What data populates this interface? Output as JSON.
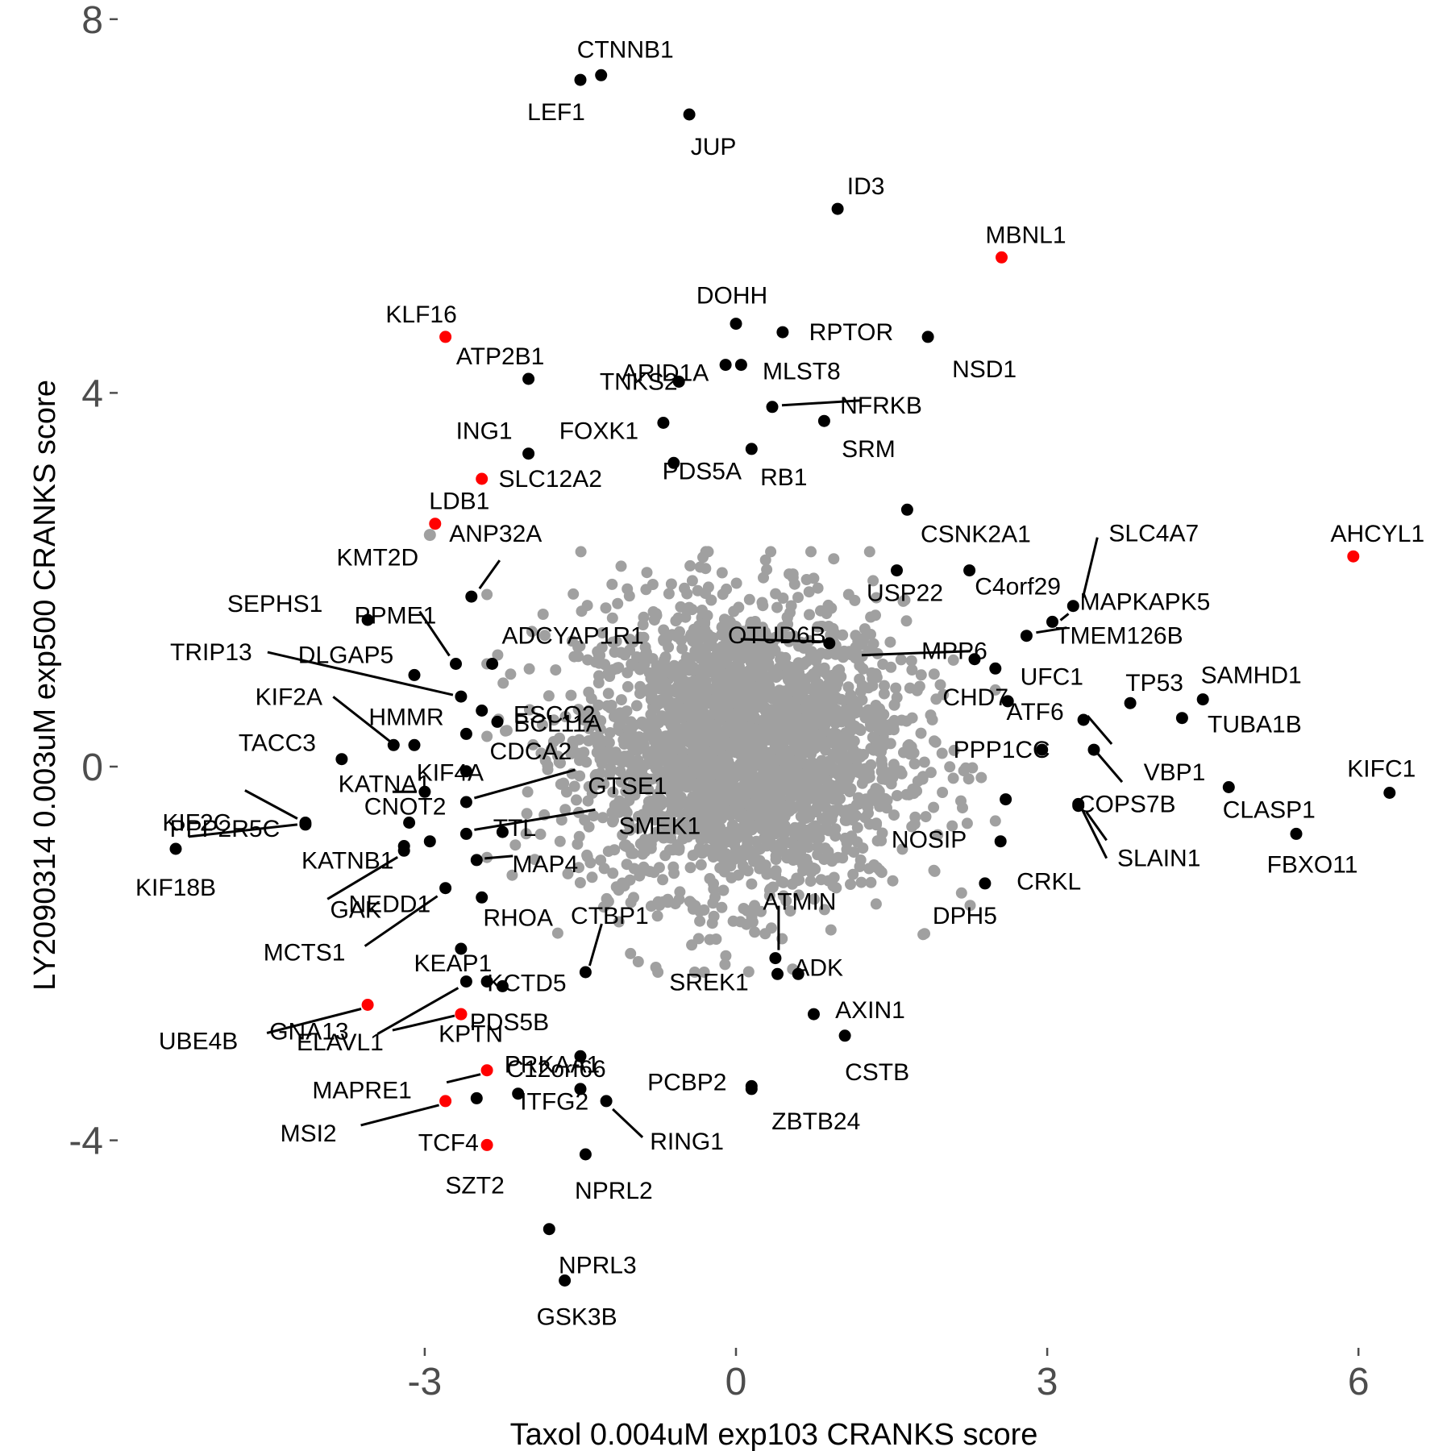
{
  "chart_data": {
    "type": "scatter",
    "title": "",
    "xlabel": "Taxol 0.004uM exp103 CRANKS score",
    "ylabel": "LY2090314 0.003uM exp500 CRANKS score",
    "xlim": [
      -5.4,
      6.6
    ],
    "ylim": [
      -6.2,
      8.3
    ],
    "xticks": [
      -3,
      0,
      3,
      6
    ],
    "yticks": [
      -4,
      0,
      4,
      8
    ],
    "xtick_labels": [
      "-3",
      "0",
      "3",
      "6"
    ],
    "ytick_labels": [
      "-4",
      "0",
      "4",
      "8"
    ],
    "grid": false,
    "legend": "none",
    "colors": {
      "background": "#cbcbcb",
      "highlight_black": "#000000",
      "highlight_red": "#ff0000",
      "text": "#000000",
      "tick_text": "#4d4d4d"
    },
    "background_cloud": {
      "series": "all genes",
      "color": "#a0a0a0",
      "center": [
        0.05,
        0.2
      ],
      "approx_range_x": [
        -2.4,
        2.5
      ],
      "approx_range_y": [
        -2.2,
        2.3
      ]
    },
    "points": [
      {
        "label": "CTNNB1",
        "x": -1.3,
        "y": 7.4,
        "color": "black"
      },
      {
        "label": "LEF1",
        "x": -1.5,
        "y": 7.35,
        "color": "black"
      },
      {
        "label": "JUP",
        "x": -0.45,
        "y": 6.98,
        "color": "black"
      },
      {
        "label": "ID3",
        "x": 0.98,
        "y": 5.97,
        "color": "black"
      },
      {
        "label": "MBNL1",
        "x": 2.56,
        "y": 5.45,
        "color": "red"
      },
      {
        "label": "DOHH",
        "x": 0.0,
        "y": 4.74,
        "color": "black"
      },
      {
        "label": "RPTOR",
        "x": 0.45,
        "y": 4.65,
        "color": "black"
      },
      {
        "label": "NSD1",
        "x": 1.85,
        "y": 4.6,
        "color": "black"
      },
      {
        "label": "KLF16",
        "x": -2.8,
        "y": 4.6,
        "color": "red"
      },
      {
        "label": "ARID1A",
        "x": -0.1,
        "y": 4.3,
        "color": "black"
      },
      {
        "label": "MLST8",
        "x": 0.05,
        "y": 4.3,
        "color": "black"
      },
      {
        "label": "ATP2B1",
        "x": -2.0,
        "y": 4.15,
        "color": "black"
      },
      {
        "label": "TNKS2",
        "x": -0.55,
        "y": 4.12,
        "color": "black"
      },
      {
        "label": "NFRKB",
        "x": 0.35,
        "y": 3.85,
        "color": "black"
      },
      {
        "label": "SRM",
        "x": 0.85,
        "y": 3.7,
        "color": "black"
      },
      {
        "label": "FOXK1",
        "x": -0.7,
        "y": 3.68,
        "color": "black"
      },
      {
        "label": "ING1",
        "x": -2.0,
        "y": 3.35,
        "color": "black"
      },
      {
        "label": "RB1",
        "x": 0.15,
        "y": 3.4,
        "color": "black"
      },
      {
        "label": "PDS5A",
        "x": -0.6,
        "y": 3.25,
        "color": "black"
      },
      {
        "label": "SLC12A2",
        "x": -2.45,
        "y": 3.08,
        "color": "red"
      },
      {
        "label": "LDB1",
        "x": -2.9,
        "y": 2.6,
        "color": "red"
      },
      {
        "label": "KMT2D",
        "x": -2.95,
        "y": 2.48,
        "color": "gray"
      },
      {
        "label": "CSNK2A1",
        "x": 1.65,
        "y": 2.75,
        "color": "black"
      },
      {
        "label": "AHCYL1",
        "x": 5.95,
        "y": 2.25,
        "color": "red"
      },
      {
        "label": "SLC4A7",
        "x": 3.25,
        "y": 1.72,
        "color": "black"
      },
      {
        "label": "C4orf29",
        "x": 2.25,
        "y": 2.1,
        "color": "black"
      },
      {
        "label": "MAPKAPK5",
        "x": 3.05,
        "y": 1.55,
        "color": "black"
      },
      {
        "label": "TMEM126B",
        "x": 2.8,
        "y": 1.4,
        "color": "black"
      },
      {
        "label": "ANP32A",
        "x": -2.55,
        "y": 1.82,
        "color": "black"
      },
      {
        "label": "USP22",
        "x": 1.55,
        "y": 2.1,
        "color": "black"
      },
      {
        "label": "SEPHS1",
        "x": -3.55,
        "y": 1.57,
        "color": "black"
      },
      {
        "label": "PPME1",
        "x": -2.7,
        "y": 1.1,
        "color": "black"
      },
      {
        "label": "ADCYAP1R1",
        "x": -2.35,
        "y": 1.1,
        "color": "black"
      },
      {
        "label": "TRIP13",
        "x": -2.65,
        "y": 0.75,
        "color": "black"
      },
      {
        "label": "DLGAP5",
        "x": -3.1,
        "y": 0.98,
        "color": "black"
      },
      {
        "label": "OTUD6B",
        "x": 0.9,
        "y": 1.32,
        "color": "black"
      },
      {
        "label": "MPP6",
        "x": 2.3,
        "y": 1.15,
        "color": "black"
      },
      {
        "label": "UFC1",
        "x": 2.5,
        "y": 1.05,
        "color": "black"
      },
      {
        "label": "ESCO2",
        "x": -2.45,
        "y": 0.6,
        "color": "black"
      },
      {
        "label": "TP53",
        "x": 3.8,
        "y": 0.68,
        "color": "black"
      },
      {
        "label": "SAMHD1",
        "x": 4.5,
        "y": 0.72,
        "color": "black"
      },
      {
        "label": "CHD7",
        "x": 2.62,
        "y": 0.7,
        "color": "black"
      },
      {
        "label": "KIF2A",
        "x": -3.3,
        "y": 0.23,
        "color": "black"
      },
      {
        "label": "HMMR",
        "x": -3.1,
        "y": 0.23,
        "color": "black"
      },
      {
        "label": "BCL11A",
        "x": -2.3,
        "y": 0.48,
        "color": "black"
      },
      {
        "label": "TUBA1B",
        "x": 4.3,
        "y": 0.52,
        "color": "black"
      },
      {
        "label": "ATF6",
        "x": 3.35,
        "y": 0.5,
        "color": "black"
      },
      {
        "label": "TACC3",
        "x": -3.8,
        "y": 0.08,
        "color": "black"
      },
      {
        "label": "KIF4A",
        "x": -2.6,
        "y": 0.35,
        "color": "black"
      },
      {
        "label": "PPP1CC",
        "x": 2.95,
        "y": 0.18,
        "color": "black"
      },
      {
        "label": "VBP1",
        "x": 3.45,
        "y": 0.18,
        "color": "black"
      },
      {
        "label": "KIFC1",
        "x": 6.3,
        "y": -0.28,
        "color": "black"
      },
      {
        "label": "CDCA2",
        "x": -2.6,
        "y": -0.05,
        "color": "black"
      },
      {
        "label": "GTSE1",
        "x": -2.6,
        "y": -0.38,
        "color": "black"
      },
      {
        "label": "KIF2C",
        "x": -4.15,
        "y": -0.6,
        "color": "black"
      },
      {
        "label": "KATNA1",
        "x": -3.0,
        "y": -0.27,
        "color": "black"
      },
      {
        "label": "CNOT2",
        "x": -3.15,
        "y": -0.6,
        "color": "black"
      },
      {
        "label": "TTL",
        "x": -2.25,
        "y": -0.7,
        "color": "black"
      },
      {
        "label": "SMEK1",
        "x": -2.6,
        "y": -0.72,
        "color": "black"
      },
      {
        "label": "CLASP1",
        "x": 4.75,
        "y": -0.22,
        "color": "black"
      },
      {
        "label": "COPS7B",
        "x": 3.3,
        "y": -0.4,
        "color": "black"
      },
      {
        "label": "NOSIP",
        "x": 2.6,
        "y": -0.35,
        "color": "black"
      },
      {
        "label": "PPP2R5C",
        "x": -4.15,
        "y": -0.62,
        "color": "black"
      },
      {
        "label": "KATNB1",
        "x": -3.2,
        "y": -0.85,
        "color": "black"
      },
      {
        "label": "KIF18B",
        "x": -5.4,
        "y": -0.88,
        "color": "black"
      },
      {
        "label": "FBXO11",
        "x": 5.4,
        "y": -0.72,
        "color": "black"
      },
      {
        "label": "SLAIN1",
        "x": 3.3,
        "y": -0.42,
        "color": "black"
      },
      {
        "label": "CRKL",
        "x": 2.55,
        "y": -0.8,
        "color": "black"
      },
      {
        "label": "MAP4",
        "x": -2.5,
        "y": -1.0,
        "color": "black"
      },
      {
        "label": "GAK",
        "x": -3.2,
        "y": -0.9,
        "color": "black"
      },
      {
        "label": "NEDD1",
        "x": -2.95,
        "y": -0.8,
        "color": "black"
      },
      {
        "label": "MCTS1",
        "x": -2.8,
        "y": -1.3,
        "color": "black"
      },
      {
        "label": "RHOA",
        "x": -2.45,
        "y": -1.4,
        "color": "black"
      },
      {
        "label": "CTBP1",
        "x": -1.45,
        "y": -2.2,
        "color": "black"
      },
      {
        "label": "DPH5",
        "x": 2.4,
        "y": -1.25,
        "color": "black"
      },
      {
        "label": "ATMIN",
        "x": 0.38,
        "y": -2.05,
        "color": "black"
      },
      {
        "label": "KEAP1",
        "x": -2.65,
        "y": -1.95,
        "color": "black"
      },
      {
        "label": "KCTD5",
        "x": -2.25,
        "y": -2.35,
        "color": "black"
      },
      {
        "label": "SREK1",
        "x": 0.4,
        "y": -2.22,
        "color": "black"
      },
      {
        "label": "ADK",
        "x": 0.6,
        "y": -2.22,
        "color": "black"
      },
      {
        "label": "GNA13",
        "x": -2.6,
        "y": -2.3,
        "color": "black"
      },
      {
        "label": "KPTN",
        "x": -2.4,
        "y": -2.3,
        "color": "black"
      },
      {
        "label": "AXIN1",
        "x": 0.75,
        "y": -2.65,
        "color": "black"
      },
      {
        "label": "UBE4B",
        "x": -3.55,
        "y": -2.55,
        "color": "red"
      },
      {
        "label": "PDS5B",
        "x": -2.65,
        "y": -2.65,
        "color": "red"
      },
      {
        "label": "ELAVL1",
        "x": -2.65,
        "y": -2.65,
        "color": "red"
      },
      {
        "label": "CSTB",
        "x": 1.05,
        "y": -2.88,
        "color": "black"
      },
      {
        "label": "PRKAA1",
        "x": -1.5,
        "y": -3.1,
        "color": "black"
      },
      {
        "label": "MAPRE1",
        "x": -2.4,
        "y": -3.25,
        "color": "red"
      },
      {
        "label": "ITFG2",
        "x": -2.1,
        "y": -3.5,
        "color": "black"
      },
      {
        "label": "PCBP2",
        "x": 0.15,
        "y": -3.42,
        "color": "black"
      },
      {
        "label": "MSI2",
        "x": -2.8,
        "y": -3.58,
        "color": "red"
      },
      {
        "label": "TCF4",
        "x": -2.5,
        "y": -3.55,
        "color": "black"
      },
      {
        "label": "RING1",
        "x": -1.25,
        "y": -3.58,
        "color": "black"
      },
      {
        "label": "ZBTB24",
        "x": 0.15,
        "y": -3.45,
        "color": "black"
      },
      {
        "label": "C12orf66",
        "x": -1.5,
        "y": -3.45,
        "color": "black"
      },
      {
        "label": "SZT2",
        "x": -2.4,
        "y": -4.05,
        "color": "red"
      },
      {
        "label": "NPRL2",
        "x": -1.45,
        "y": -4.15,
        "color": "black"
      },
      {
        "label": "NPRL3",
        "x": -1.8,
        "y": -4.95,
        "color": "black"
      },
      {
        "label": "GSK3B",
        "x": -1.65,
        "y": -5.5,
        "color": "black"
      }
    ]
  }
}
